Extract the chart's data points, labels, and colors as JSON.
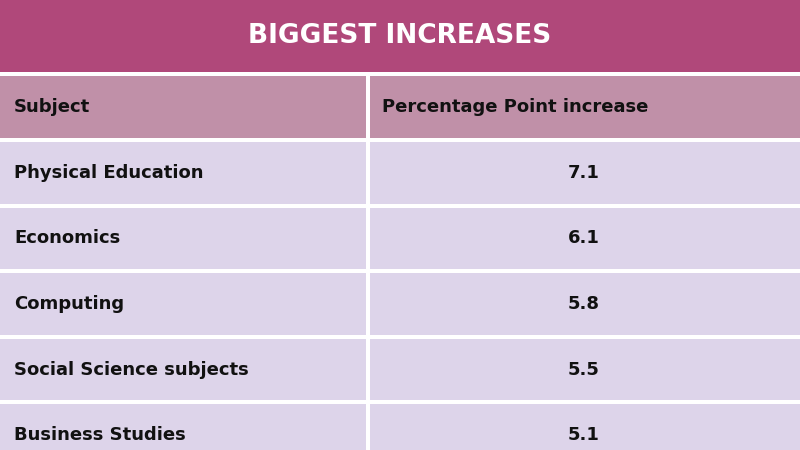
{
  "title": "BIGGEST INCREASES",
  "title_bg": "#b0487a",
  "title_color": "#ffffff",
  "header_bg": "#c090a8",
  "col1_header": "Subject",
  "col2_header": "Percentage Point increase",
  "rows": [
    [
      "Physical Education",
      "7.1"
    ],
    [
      "Economics",
      "6.1"
    ],
    [
      "Computing",
      "5.8"
    ],
    [
      "Social Science subjects",
      "5.5"
    ],
    [
      "Business Studies",
      "5.1"
    ]
  ],
  "row_bg": "#ddd4ea",
  "divider_color": "#ffffff",
  "text_color": "#111111",
  "fig_bg": "#ffffff",
  "col_split": 0.46,
  "title_fontsize": 19,
  "header_fontsize": 13,
  "row_fontsize": 13
}
